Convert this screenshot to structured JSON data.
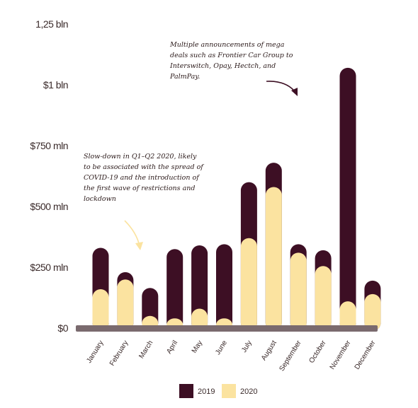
{
  "chart_data": {
    "type": "bar",
    "stacked": "overlay",
    "categories": [
      "January",
      "February",
      "March",
      "April",
      "May",
      "June",
      "July",
      "August",
      "September",
      "October",
      "November",
      "December"
    ],
    "series": [
      {
        "name": "2019",
        "color": "#3d0f24",
        "values": [
          330,
          230,
          165,
          325,
          340,
          345,
          600,
          680,
          345,
          320,
          1070,
          195
        ]
      },
      {
        "name": "2020",
        "color": "#fbe3a0",
        "values": [
          160,
          200,
          50,
          40,
          80,
          40,
          370,
          580,
          310,
          255,
          110,
          140
        ]
      }
    ],
    "ylim": [
      0,
      1250
    ],
    "yticks": [
      {
        "value": 0,
        "label": "$0"
      },
      {
        "value": 250,
        "label": "$250 mln"
      },
      {
        "value": 500,
        "label": "$500 mln"
      },
      {
        "value": 750,
        "label": "$750 mln"
      },
      {
        "value": 1000,
        "label": "$1 bln"
      },
      {
        "value": 1250,
        "label": "1,25 bln"
      }
    ],
    "grid": false,
    "legend_position": "bottom",
    "baseline_color": "#7a6a6e",
    "annotations": [
      {
        "target": "November",
        "lines": [
          "Multiple announcements of mega",
          "deals such as Frontier Car Group to",
          "Interswitch, Opay, Hectch, and",
          "PalmPay."
        ]
      },
      {
        "target": "March",
        "lines": [
          "Slow-down in Q1–Q2 2020, likely",
          "to be associated with the spread of",
          "COVID-19 and the introduction of",
          "the first wave of restrictions and",
          "lockdown"
        ]
      }
    ]
  }
}
